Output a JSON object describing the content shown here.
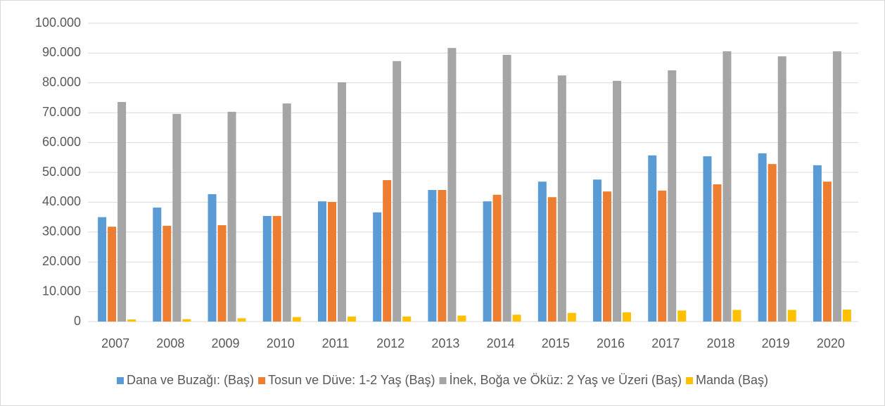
{
  "chart_data": {
    "type": "bar",
    "categories": [
      "2007",
      "2008",
      "2009",
      "2010",
      "2011",
      "2012",
      "2013",
      "2014",
      "2015",
      "2016",
      "2017",
      "2018",
      "2019",
      "2020"
    ],
    "series": [
      {
        "name": "Dana ve Buzağı: (Baş)",
        "color": "#5b9bd5",
        "values": [
          35000,
          38200,
          42700,
          35400,
          40300,
          36600,
          44100,
          40300,
          46900,
          47600,
          55700,
          55400,
          56400,
          52400
        ]
      },
      {
        "name": "Tosun ve Düve: 1-2 Yaş (Baş)",
        "color": "#ed7d31",
        "values": [
          31800,
          32100,
          32300,
          35400,
          40100,
          47400,
          44100,
          42500,
          41700,
          43600,
          43900,
          46000,
          52800,
          46900
        ]
      },
      {
        "name": "İnek, Boğa ve Öküz: 2 Yaş ve Üzeri (Baş)",
        "color": "#a5a5a5",
        "values": [
          73600,
          69600,
          70300,
          73100,
          80200,
          87300,
          91700,
          89400,
          82500,
          80700,
          84200,
          90600,
          88900,
          90600
        ]
      },
      {
        "name": "Manda (Baş)",
        "color": "#ffc000",
        "values": [
          700,
          800,
          1100,
          1500,
          1700,
          1700,
          2000,
          2300,
          2900,
          3100,
          3700,
          3900,
          3900,
          4000
        ]
      }
    ],
    "ylim": [
      0,
      100000
    ],
    "yticks": [
      0,
      {
        "value": 10000,
        "label": "10.000"
      },
      {
        "value": 20000,
        "label": "20.000"
      },
      {
        "value": 30000,
        "label": "30.000"
      },
      {
        "value": 40000,
        "label": "40.000"
      },
      {
        "value": 50000,
        "label": "50.000"
      },
      {
        "value": 60000,
        "label": "60.000"
      },
      {
        "value": 70000,
        "label": "70.000"
      },
      {
        "value": 80000,
        "label": "80.000"
      },
      {
        "value": 90000,
        "label": "90.000"
      },
      {
        "value": 100000,
        "label": "100.000"
      }
    ],
    "grid": true,
    "legend": "bottom"
  }
}
